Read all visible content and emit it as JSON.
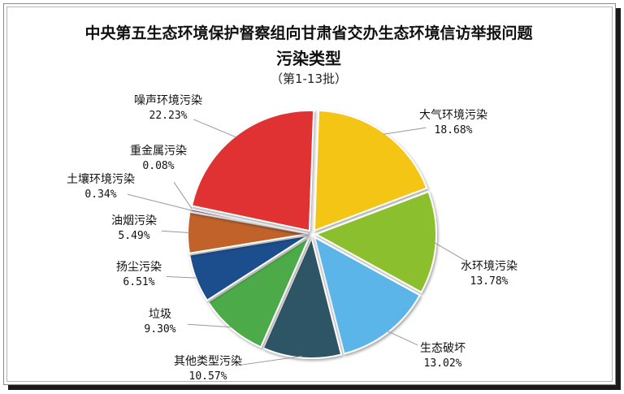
{
  "chart_data": {
    "type": "pie",
    "title": "中央第五生态环境保护督察组向甘肃省交办生态环境信访举报问题",
    "subtitle": "污染类型",
    "note": "（第1-13批）",
    "slices": [
      {
        "name": "大气环境污染",
        "value": 18.68,
        "label": "18.68%",
        "color": "#F5C518"
      },
      {
        "name": "水环境污染",
        "value": 13.78,
        "label": "13.78%",
        "color": "#8CBF2E"
      },
      {
        "name": "生态破坏",
        "value": 13.02,
        "label": "13.02%",
        "color": "#5BB5E8"
      },
      {
        "name": "其他类型污染",
        "value": 10.57,
        "label": "10.57%",
        "color": "#2F5566"
      },
      {
        "name": "垃圾",
        "value": 9.3,
        "label": "9.30%",
        "color": "#4DAA4A"
      },
      {
        "name": "扬尘污染",
        "value": 6.51,
        "label": "6.51%",
        "color": "#1E4E8C"
      },
      {
        "name": "油烟污染",
        "value": 5.49,
        "label": "5.49%",
        "color": "#C0622A"
      },
      {
        "name": "土壤环境污染",
        "value": 0.34,
        "label": "0.34%",
        "color": "#7A4A9E"
      },
      {
        "name": "重金属污染",
        "value": 0.08,
        "label": "0.08%",
        "color": "#6E6E6E"
      },
      {
        "name": "噪声环境污染",
        "value": 22.23,
        "label": "22.23%",
        "color": "#E03030"
      }
    ]
  }
}
